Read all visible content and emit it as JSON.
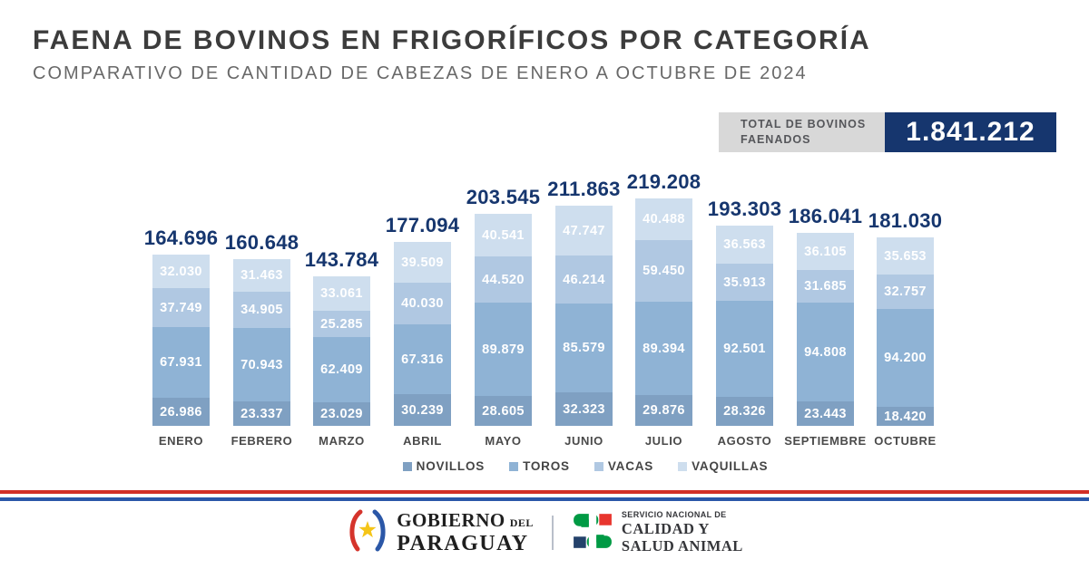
{
  "header": {
    "title": "FAENA DE BOVINOS EN FRIGORÍFICOS POR CATEGORÍA",
    "subtitle": "COMPARATIVO DE CANTIDAD DE CABEZAS DE ENERO A OCTUBRE DE 2024"
  },
  "total": {
    "label_line1": "TOTAL DE BOVINOS",
    "label_line2": "FAENADOS",
    "value": "1.841.212"
  },
  "chart_data": {
    "type": "bar",
    "stacked": true,
    "title": "FAENA DE BOVINOS EN FRIGORÍFICOS POR CATEGORÍA",
    "categories": [
      "ENERO",
      "FEBRERO",
      "MARZO",
      "ABRIL",
      "MAYO",
      "JUNIO",
      "JULIO",
      "AGOSTO",
      "SEPTIEMBRE",
      "OCTUBRE"
    ],
    "series": [
      {
        "name": "NOVILLOS",
        "color": "#7fa0c2",
        "values": [
          26986,
          23337,
          23029,
          30239,
          28605,
          32323,
          29876,
          28326,
          23443,
          18420
        ]
      },
      {
        "name": "TOROS",
        "color": "#8fb3d5",
        "values": [
          67931,
          70943,
          62409,
          67316,
          89879,
          85579,
          89394,
          92501,
          94808,
          94200
        ]
      },
      {
        "name": "VACAS",
        "color": "#b0c8e2",
        "values": [
          37749,
          34905,
          25285,
          40030,
          44520,
          46214,
          59450,
          35913,
          31685,
          32757
        ]
      },
      {
        "name": "VAQUILLAS",
        "color": "#cedeee",
        "values": [
          32030,
          31463,
          33061,
          39509,
          40541,
          47747,
          40488,
          36563,
          36105,
          35653
        ]
      }
    ],
    "totals": [
      "164.696",
      "160.648",
      "143.784",
      "177.094",
      "203.545",
      "211.863",
      "219.208",
      "193.303",
      "186.041",
      "181.030"
    ],
    "legend_position": "bottom",
    "value_format": "thousands-dot",
    "ylim": [
      0,
      219208
    ]
  },
  "footer": {
    "gobierno": {
      "line1": "GOBIERNO",
      "del": "DEL",
      "line2": "PARAGUAY"
    },
    "senacsa": {
      "small": "SERVICIO NACIONAL DE",
      "line1": "CALIDAD Y",
      "line2": "SALUD ANIMAL"
    }
  },
  "colors": {
    "accent_navy": "#16366e",
    "total_label_bg": "#d8d8d8",
    "stripe_red": "#d22f27",
    "stripe_blue": "#2b57a8",
    "wreath_red": "#d5342c",
    "wreath_blue": "#2b57a7",
    "star_yellow": "#f5c518",
    "senacsa_green": "#009a44",
    "senacsa_red": "#e8352e",
    "senacsa_navy": "#24426b"
  }
}
